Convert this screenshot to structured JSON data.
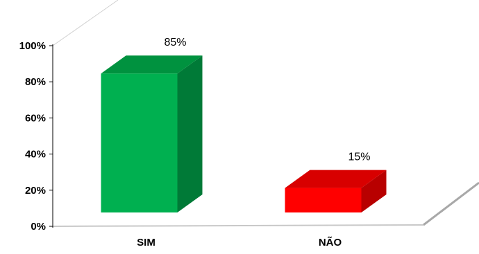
{
  "chart_data": {
    "type": "bar",
    "categories": [
      "SIM",
      "NÃO"
    ],
    "values": [
      85,
      15
    ],
    "data_labels": [
      "85%",
      "15%"
    ],
    "ylim": [
      0,
      100
    ],
    "yticks": [
      "0%",
      "20%",
      "40%",
      "60%",
      "80%",
      "100%"
    ],
    "grid": false,
    "legend": "none",
    "three_d": true,
    "colors": {
      "SIM": {
        "front": "#00b050",
        "side": "#007a37",
        "top": "#00923f"
      },
      "NÃO": {
        "front": "#ff0000",
        "side": "#b80000",
        "top": "#d80000"
      }
    }
  }
}
